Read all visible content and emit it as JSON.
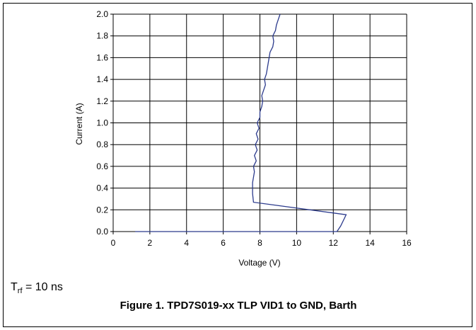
{
  "chart_data": {
    "type": "line",
    "title": "Figure 1. TPD7S019-xx TLP VID1 to GND, Barth",
    "xlabel": "Voltage (V)",
    "ylabel": "Current (A)",
    "xlim": [
      0,
      16
    ],
    "ylim": [
      0,
      2.0
    ],
    "grid": true,
    "x_ticks": [
      "0",
      "2",
      "4",
      "6",
      "8",
      "10",
      "12",
      "14",
      "16"
    ],
    "y_ticks": [
      "0.0",
      "0.2",
      "0.4",
      "0.6",
      "0.8",
      "1.0",
      "1.2",
      "1.4",
      "1.6",
      "1.8",
      "2.0"
    ],
    "series": [
      {
        "color": "#2b3a8c",
        "points": [
          [
            1.2,
            0.0
          ],
          [
            12.2,
            0.0
          ],
          [
            12.4,
            0.05
          ],
          [
            12.6,
            0.12
          ],
          [
            12.7,
            0.155
          ],
          [
            7.65,
            0.27
          ],
          [
            7.6,
            0.35
          ],
          [
            7.6,
            0.45
          ],
          [
            7.65,
            0.5
          ],
          [
            7.7,
            0.55
          ],
          [
            7.65,
            0.6
          ],
          [
            7.8,
            0.65
          ],
          [
            7.7,
            0.7
          ],
          [
            7.85,
            0.75
          ],
          [
            7.75,
            0.8
          ],
          [
            7.9,
            0.85
          ],
          [
            7.8,
            0.9
          ],
          [
            7.95,
            0.95
          ],
          [
            7.85,
            1.0
          ],
          [
            8.0,
            1.05
          ],
          [
            8.0,
            1.1
          ],
          [
            8.1,
            1.15
          ],
          [
            8.15,
            1.2
          ],
          [
            8.1,
            1.25
          ],
          [
            8.2,
            1.3
          ],
          [
            8.3,
            1.35
          ],
          [
            8.25,
            1.4
          ],
          [
            8.35,
            1.45
          ],
          [
            8.4,
            1.5
          ],
          [
            8.45,
            1.55
          ],
          [
            8.5,
            1.6
          ],
          [
            8.55,
            1.65
          ],
          [
            8.7,
            1.7
          ],
          [
            8.75,
            1.75
          ],
          [
            8.7,
            1.8
          ],
          [
            8.85,
            1.85
          ],
          [
            8.9,
            1.9
          ],
          [
            9.0,
            1.95
          ],
          [
            9.1,
            2.0
          ]
        ]
      }
    ]
  },
  "note": {
    "main": "T",
    "sub": "rf",
    "rest": " = 10 ns"
  }
}
